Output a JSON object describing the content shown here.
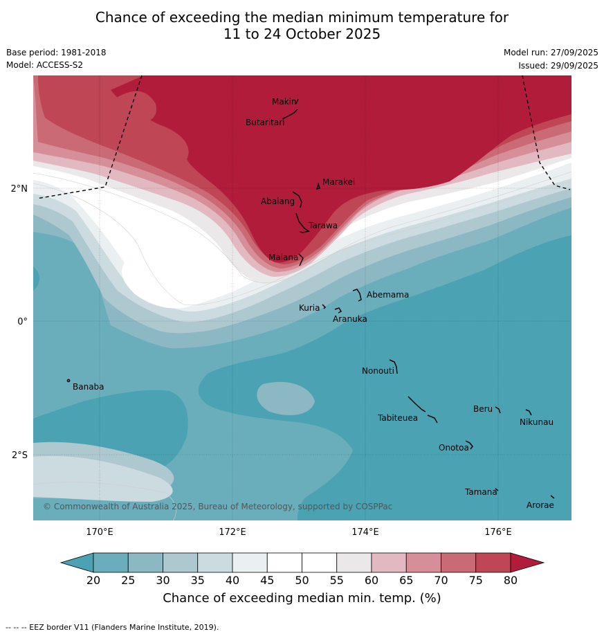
{
  "header": {
    "title_line1": "Chance of exceeding the median minimum temperature for",
    "title_line2": "11 to 24 October 2025",
    "base_period": "Base period: 1981-2018",
    "model": "Model: ACCESS-S2",
    "model_run": "Model run: 27/09/2025",
    "issued": "Issued: 29/09/2025"
  },
  "axes": {
    "x_ticks": [
      "170°E",
      "172°E",
      "174°E",
      "176°E"
    ],
    "y_ticks": [
      "2°N",
      "0°",
      "2°S"
    ]
  },
  "places": [
    "Makin",
    "Butaritari",
    "Marakei",
    "Abaiang",
    "Tarawa",
    "Maiana",
    "Abemama",
    "Kuria",
    "Aranuka",
    "Nonouti",
    "Banaba",
    "Beru",
    "Nikunau",
    "Tabiteuea",
    "Onotoa",
    "Tamana",
    "Arorae"
  ],
  "copyright": "© Commonwealth of Australia 2025, Bureau of Meteorology, supported by COSPPac",
  "colorbar": {
    "ticks": [
      "20",
      "25",
      "30",
      "35",
      "40",
      "45",
      "50",
      "55",
      "60",
      "65",
      "70",
      "75",
      "80"
    ],
    "colors": [
      "#6aaebb",
      "#8cb8c4",
      "#adc8cf",
      "#ccdbe0",
      "#eaeff1",
      "#ffffff",
      "#ffffff",
      "#ebe8ea",
      "#e2b9c0",
      "#d68f98",
      "#c96a74",
      "#be4655"
    ],
    "under_color": "#4aa2b3",
    "over_color": "#b11c3a",
    "label": "Chance of exceeding median min. temp. (%)"
  },
  "footer": "--  --  -- EEZ border V11 (Flanders Marine Institute, 2019)."
}
